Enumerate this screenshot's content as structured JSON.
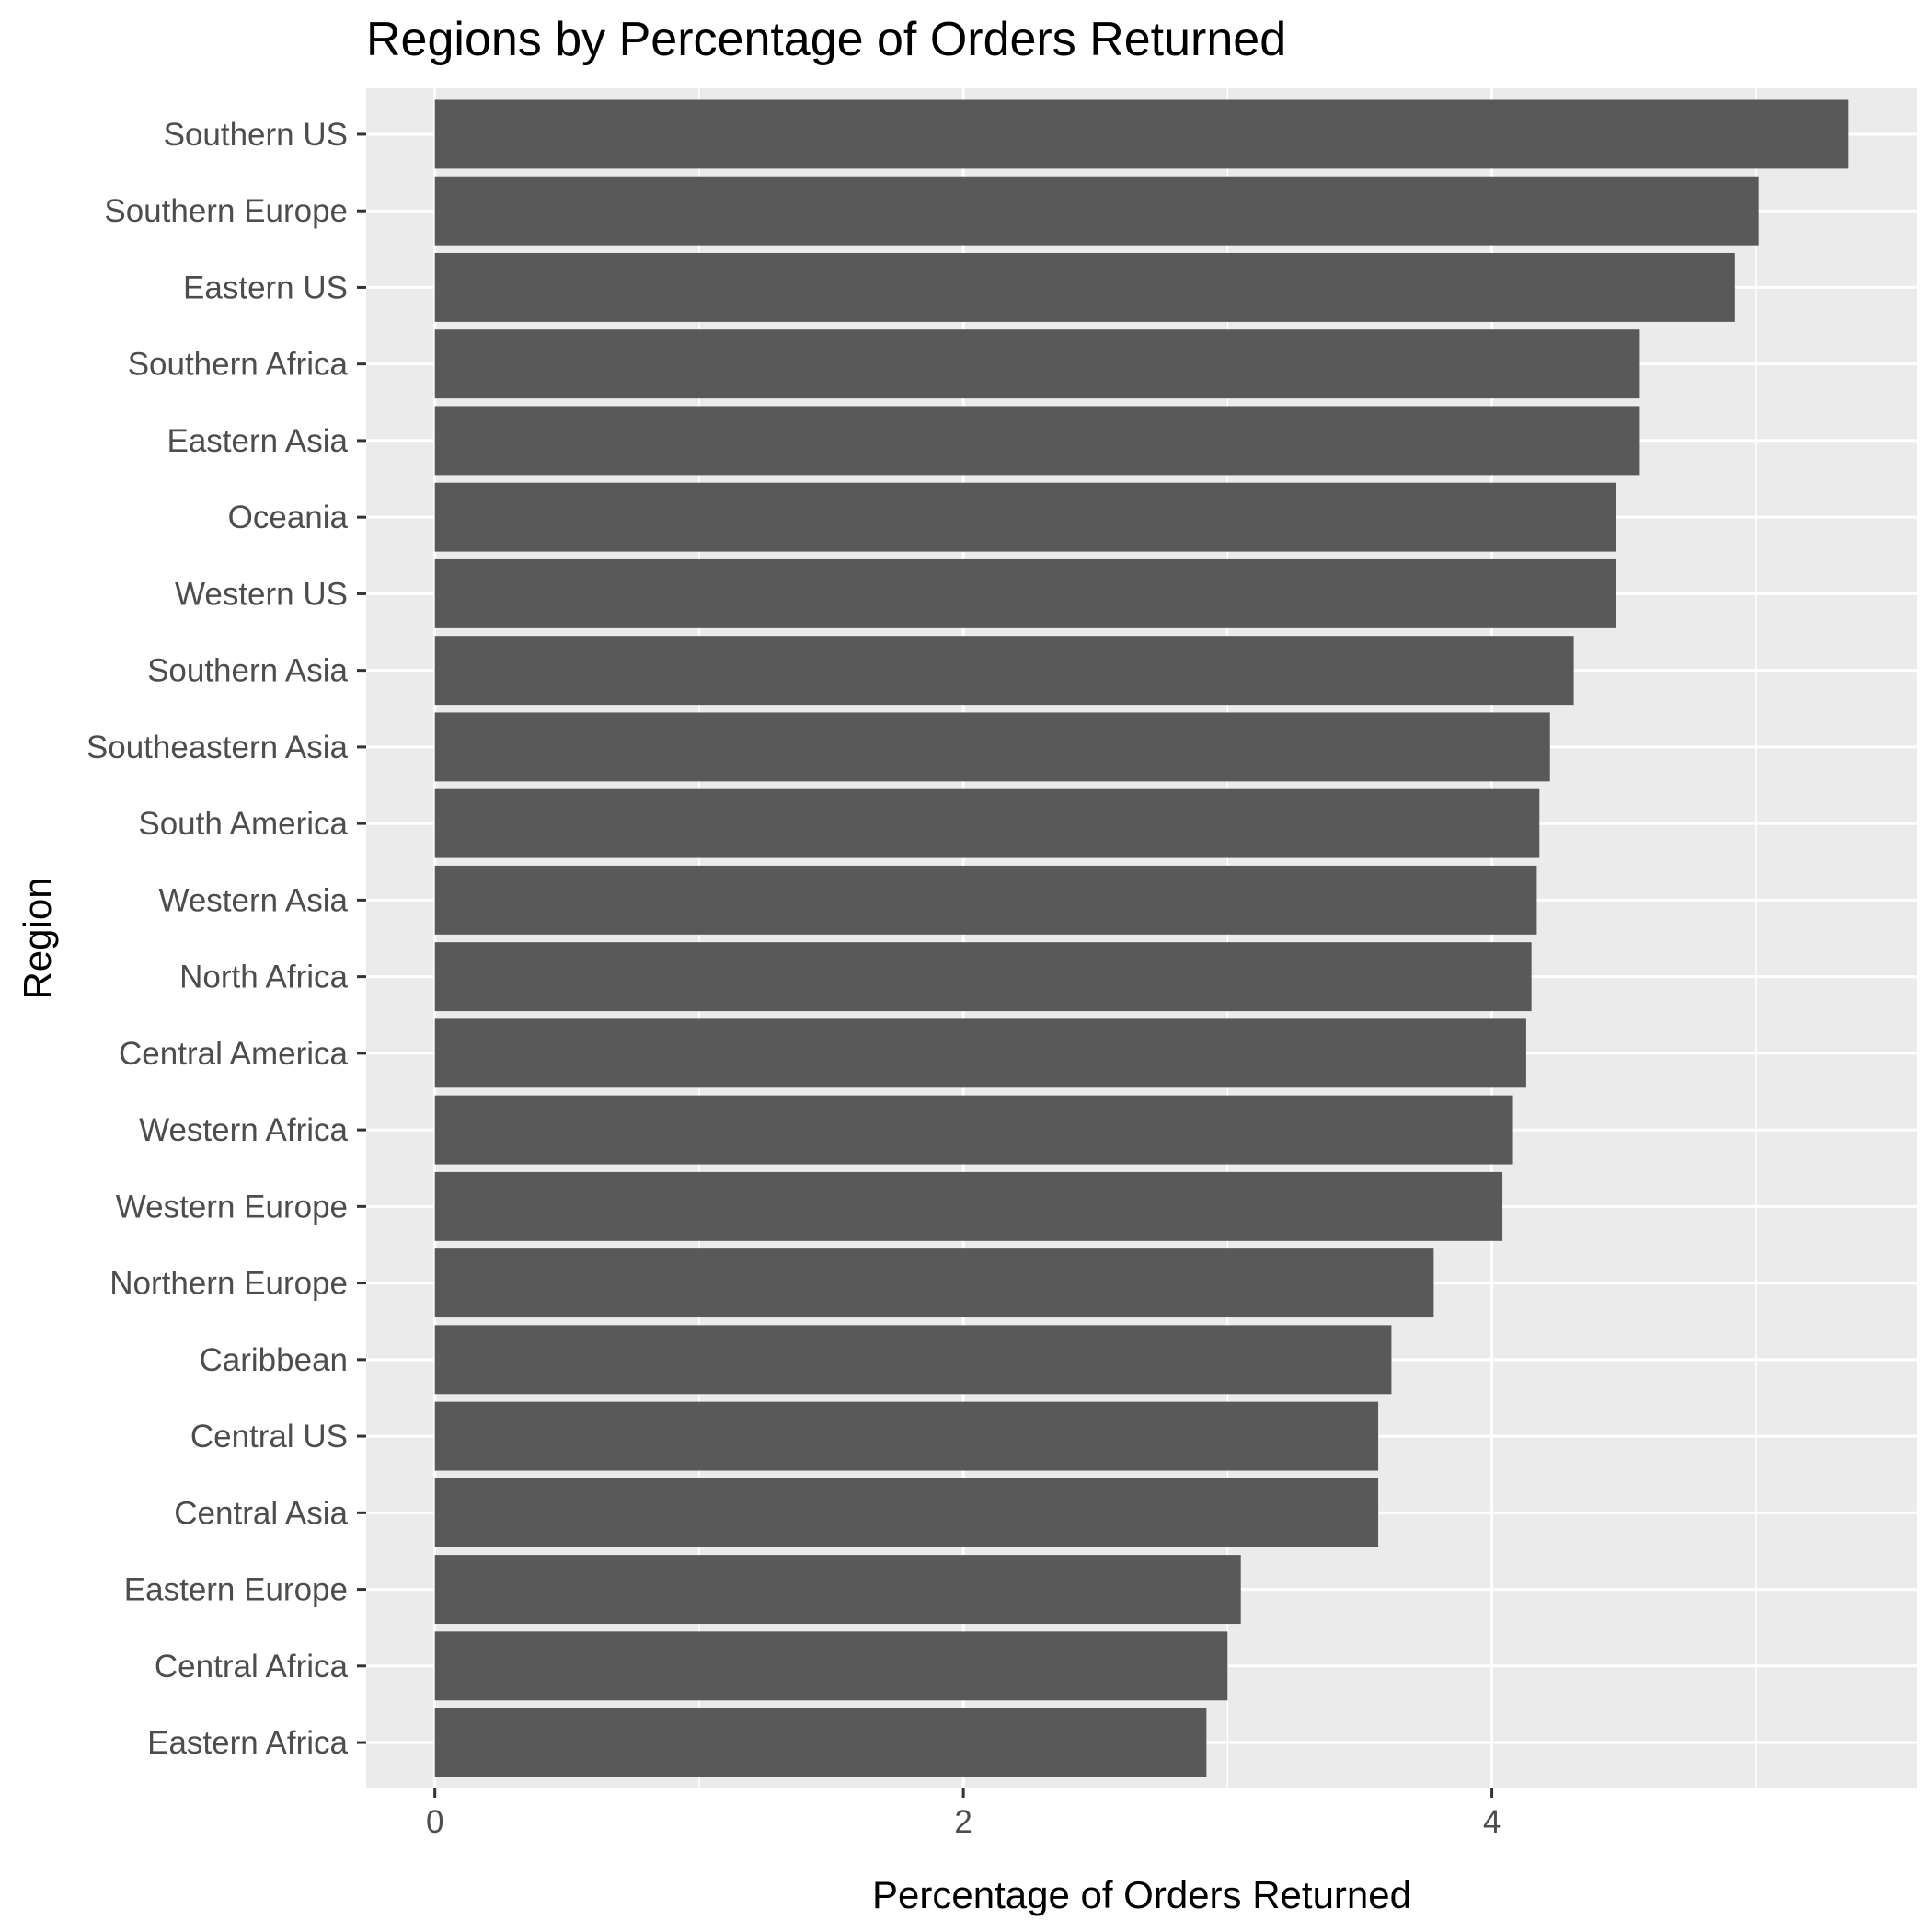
{
  "chart_data": {
    "type": "bar",
    "orientation": "horizontal",
    "title": "Regions by Percentage of Orders Returned",
    "xlabel": "Percentage of Orders Returned",
    "ylabel": "Region",
    "xlim": [
      -0.26,
      5.61
    ],
    "xticks": [
      0,
      2,
      4
    ],
    "xtick_labels": [
      "0",
      "2",
      "4"
    ],
    "grid": true,
    "categories": [
      "Southern US",
      "Southern Europe",
      "Eastern US",
      "Southern Africa",
      "Eastern Asia",
      "Oceania",
      "Western US",
      "Southern Asia",
      "Southeastern Asia",
      "South America",
      "Western Asia",
      "North Africa",
      "Central America",
      "Western Africa",
      "Western Europe",
      "Northern Europe",
      "Caribbean",
      "Central US",
      "Central Asia",
      "Eastern Europe",
      "Central Africa",
      "Eastern Africa"
    ],
    "values": [
      5.35,
      5.01,
      4.92,
      4.56,
      4.56,
      4.47,
      4.47,
      4.31,
      4.22,
      4.18,
      4.17,
      4.15,
      4.13,
      4.08,
      4.04,
      3.78,
      3.62,
      3.57,
      3.57,
      3.05,
      3.0,
      2.92
    ],
    "colors": {
      "panel_bg": "#ebebeb",
      "bar_fill": "#595959",
      "grid": "#ffffff",
      "tick_text": "#4d4d4d",
      "title_text": "#000000"
    }
  }
}
